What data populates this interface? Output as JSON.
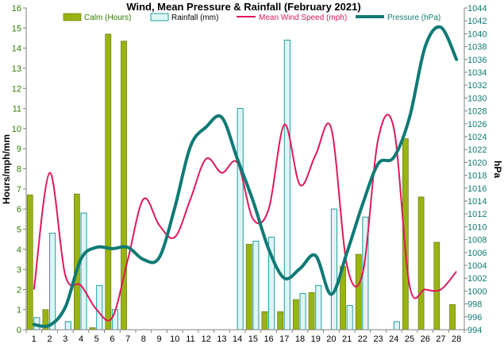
{
  "chart_data": {
    "type": "bar+line",
    "title": "Wind, Mean Pressure & Rainfall (February 2021)",
    "ylabel_left": "Hours/mph/mm",
    "ylabel_right": "hPa",
    "ylim_left": [
      0,
      16
    ],
    "ylim_right": [
      994,
      1044
    ],
    "left_ticks": [
      0,
      1,
      2,
      3,
      4,
      5,
      6,
      7,
      8,
      9,
      10,
      11,
      12,
      13,
      14,
      15,
      16
    ],
    "right_ticks": [
      994,
      996,
      998,
      1000,
      1002,
      1004,
      1006,
      1008,
      1010,
      1012,
      1014,
      1016,
      1018,
      1020,
      1022,
      1024,
      1026,
      1028,
      1030,
      1032,
      1034,
      1036,
      1038,
      1040,
      1042,
      1044
    ],
    "categories": [
      "1",
      "2",
      "3",
      "4",
      "5",
      "6",
      "7",
      "8",
      "9",
      "10",
      "11",
      "12",
      "13",
      "14",
      "15",
      "16",
      "17",
      "18",
      "19",
      "20",
      "21",
      "22",
      "23",
      "24",
      "25",
      "26",
      "27",
      "28"
    ],
    "legend_position": "top",
    "colors": {
      "calm": "#99b411",
      "calm_stroke": "#5a6b00",
      "rain_fill": "#dff5f5",
      "rain_stroke": "#1f9e9e",
      "wind": "#e0185a",
      "pressure": "#0f7a75",
      "left_axis_text": "#2e7d00",
      "right_axis_text": "#0f7a75",
      "title": "#000000"
    },
    "series": [
      {
        "name": "Calm (Hours)",
        "kind": "bar",
        "axis": "left",
        "values": [
          6.7,
          1.0,
          0,
          6.75,
          0.1,
          14.7,
          14.35,
          0,
          0,
          0,
          0,
          0,
          0,
          0,
          4.25,
          0.9,
          0.9,
          1.5,
          1.85,
          0,
          3.15,
          3.75,
          0,
          0,
          9.5,
          6.6,
          4.35,
          1.25
        ]
      },
      {
        "name": "Rainfall (mm)",
        "kind": "bar",
        "axis": "left",
        "values": [
          0.6,
          4.8,
          0.4,
          5.8,
          2.2,
          1.0,
          0,
          0,
          0,
          0,
          0,
          0,
          0,
          11.0,
          4.4,
          4.6,
          14.4,
          1.8,
          2.2,
          6.0,
          1.2,
          5.6,
          0,
          0.4,
          0,
          0,
          0,
          0
        ]
      },
      {
        "name": "Mean Wind Speed (mph)",
        "kind": "line",
        "axis": "left",
        "values": [
          2.0,
          7.8,
          2.7,
          2.2,
          1.0,
          0.6,
          3.5,
          6.5,
          5.2,
          4.6,
          6.5,
          8.5,
          7.8,
          8.3,
          5.5,
          6.0,
          10.2,
          7.2,
          8.7,
          10.0,
          3.2,
          2.8,
          9.5,
          10.0,
          2.2,
          2.0,
          2.0,
          2.9
        ]
      },
      {
        "name": "Pressure (hPa)",
        "kind": "line",
        "axis": "right",
        "values": [
          994.8,
          994.7,
          997.5,
          1005.0,
          1006.8,
          1006.6,
          1006.8,
          1004.9,
          1005.2,
          1013.0,
          1022.5,
          1025.5,
          1027.0,
          1020.5,
          1014.0,
          1006.5,
          1002.0,
          1003.5,
          1005.5,
          999.5,
          1006.0,
          1013.5,
          1019.8,
          1020.8,
          1027.0,
          1038.0,
          1041.0,
          1036.0
        ]
      }
    ]
  }
}
